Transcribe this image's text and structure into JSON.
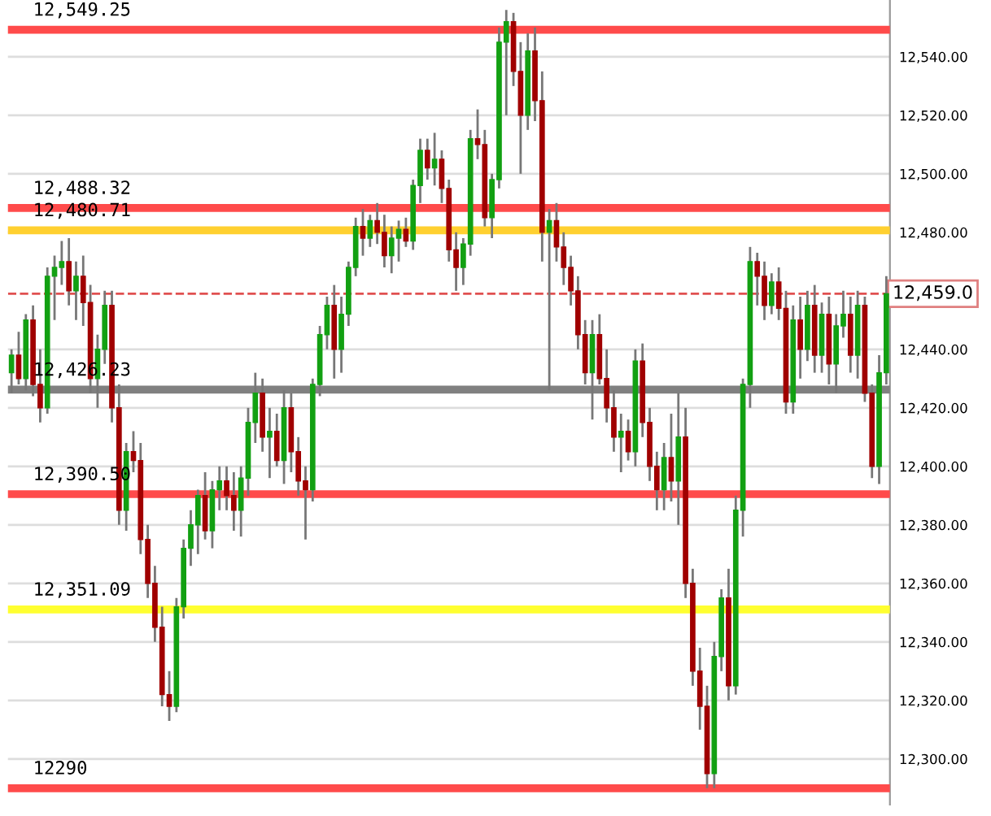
{
  "chart_data": {
    "type": "candlestick",
    "categories": [
      null,
      null,
      null,
      null,
      null,
      null,
      null,
      null,
      null,
      null,
      null,
      null,
      null,
      null,
      null,
      null,
      null,
      null,
      null,
      null,
      null,
      null,
      null,
      null,
      null,
      null,
      null,
      null,
      null,
      null,
      null,
      null,
      null,
      null,
      null,
      null,
      null,
      null,
      null,
      null,
      null,
      null,
      null,
      null,
      null,
      null,
      null,
      null,
      null,
      null,
      null,
      null,
      null,
      null,
      null,
      null,
      null,
      null,
      null,
      null,
      null,
      null,
      null,
      null,
      null,
      null,
      null,
      null,
      null,
      null,
      null,
      null,
      null,
      null,
      null,
      null,
      null,
      null,
      null,
      null,
      null,
      null,
      null,
      null,
      null,
      null,
      null,
      null,
      null,
      null,
      null,
      null,
      null,
      null,
      null,
      null,
      null,
      null,
      null,
      null,
      null,
      null,
      null,
      null,
      null,
      null,
      null,
      null,
      null,
      null,
      null,
      null,
      null,
      null,
      null,
      null,
      null,
      null,
      null,
      null,
      null,
      null,
      null
    ],
    "ohlc": [
      [
        12432,
        12440,
        12425,
        12438
      ],
      [
        12438,
        12446,
        12428,
        12430
      ],
      [
        12430,
        12452,
        12426,
        12450
      ],
      [
        12450,
        12455,
        12424,
        12428
      ],
      [
        12428,
        12440,
        12415,
        12420
      ],
      [
        12420,
        12468,
        12418,
        12465
      ],
      [
        12465,
        12472,
        12450,
        12468
      ],
      [
        12468,
        12477,
        12462,
        12470
      ],
      [
        12470,
        12478,
        12455,
        12460
      ],
      [
        12460,
        12470,
        12450,
        12465
      ],
      [
        12465,
        12472,
        12448,
        12456
      ],
      [
        12456,
        12462,
        12425,
        12430
      ],
      [
        12430,
        12445,
        12420,
        12440
      ],
      [
        12440,
        12460,
        12435,
        12455
      ],
      [
        12455,
        12460,
        12415,
        12420
      ],
      [
        12420,
        12428,
        12380,
        12385
      ],
      [
        12385,
        12408,
        12378,
        12405
      ],
      [
        12405,
        12412,
        12398,
        12402
      ],
      [
        12402,
        12408,
        12370,
        12375
      ],
      [
        12375,
        12380,
        12355,
        12360
      ],
      [
        12360,
        12366,
        12340,
        12345
      ],
      [
        12345,
        12352,
        12318,
        12322
      ],
      [
        12322,
        12330,
        12313,
        12318
      ],
      [
        12318,
        12355,
        12316,
        12352
      ],
      [
        12352,
        12375,
        12348,
        12372
      ],
      [
        12372,
        12385,
        12366,
        12380
      ],
      [
        12380,
        12392,
        12370,
        12390
      ],
      [
        12390,
        12398,
        12375,
        12378
      ],
      [
        12378,
        12395,
        12372,
        12392
      ],
      [
        12392,
        12400,
        12385,
        12395
      ],
      [
        12395,
        12400,
        12385,
        12390
      ],
      [
        12390,
        12398,
        12378,
        12385
      ],
      [
        12385,
        12400,
        12376,
        12396
      ],
      [
        12396,
        12420,
        12390,
        12415
      ],
      [
        12415,
        12432,
        12408,
        12425
      ],
      [
        12425,
        12430,
        12405,
        12410
      ],
      [
        12410,
        12420,
        12396,
        12412
      ],
      [
        12412,
        12418,
        12400,
        12402
      ],
      [
        12402,
        12426,
        12394,
        12420
      ],
      [
        12420,
        12425,
        12398,
        12405
      ],
      [
        12405,
        12410,
        12390,
        12395
      ],
      [
        12395,
        12400,
        12375,
        12392
      ],
      [
        12392,
        12430,
        12388,
        12428
      ],
      [
        12428,
        12448,
        12424,
        12445
      ],
      [
        12445,
        12458,
        12440,
        12455
      ],
      [
        12455,
        12462,
        12430,
        12440
      ],
      [
        12440,
        12458,
        12432,
        12452
      ],
      [
        12452,
        12470,
        12448,
        12468
      ],
      [
        12468,
        12485,
        12465,
        12482
      ],
      [
        12482,
        12488,
        12472,
        12478
      ],
      [
        12478,
        12486,
        12475,
        12484
      ],
      [
        12484,
        12490,
        12476,
        12480
      ],
      [
        12480,
        12486,
        12468,
        12472
      ],
      [
        12472,
        12482,
        12466,
        12478
      ],
      [
        12478,
        12484,
        12470,
        12481
      ],
      [
        12481,
        12485,
        12475,
        12477
      ],
      [
        12477,
        12498,
        12474,
        12496
      ],
      [
        12496,
        12512,
        12490,
        12508
      ],
      [
        12508,
        12512,
        12498,
        12502
      ],
      [
        12502,
        12514,
        12496,
        12505
      ],
      [
        12505,
        12508,
        12490,
        12495
      ],
      [
        12495,
        12498,
        12470,
        12474
      ],
      [
        12474,
        12480,
        12460,
        12468
      ],
      [
        12468,
        12478,
        12462,
        12476
      ],
      [
        12476,
        12515,
        12472,
        12512
      ],
      [
        12512,
        12522,
        12505,
        12510
      ],
      [
        12510,
        12515,
        12482,
        12485
      ],
      [
        12485,
        12500,
        12478,
        12498
      ],
      [
        12498,
        12550,
        12495,
        12545
      ],
      [
        12545,
        12556,
        12520,
        12552
      ],
      [
        12552,
        12555,
        12530,
        12535
      ],
      [
        12535,
        12545,
        12500,
        12520
      ],
      [
        12520,
        12548,
        12515,
        12542
      ],
      [
        12542,
        12550,
        12518,
        12525
      ],
      [
        12525,
        12535,
        12470,
        12480
      ],
      [
        12480,
        12488,
        12426,
        12484
      ],
      [
        12484,
        12490,
        12470,
        12475
      ],
      [
        12475,
        12480,
        12462,
        12468
      ],
      [
        12468,
        12472,
        12455,
        12460
      ],
      [
        12460,
        12465,
        12440,
        12445
      ],
      [
        12445,
        12450,
        12428,
        12432
      ],
      [
        12432,
        12450,
        12416,
        12445
      ],
      [
        12445,
        12452,
        12428,
        12430
      ],
      [
        12430,
        12440,
        12415,
        12420
      ],
      [
        12420,
        12426,
        12405,
        12410
      ],
      [
        12410,
        12418,
        12398,
        12412
      ],
      [
        12412,
        12416,
        12402,
        12405
      ],
      [
        12405,
        12440,
        12400,
        12436
      ],
      [
        12436,
        12442,
        12410,
        12415
      ],
      [
        12415,
        12420,
        12395,
        12400
      ],
      [
        12400,
        12405,
        12385,
        12392
      ],
      [
        12392,
        12408,
        12385,
        12403
      ],
      [
        12403,
        12418,
        12388,
        12395
      ],
      [
        12395,
        12425,
        12380,
        12410
      ],
      [
        12410,
        12420,
        12355,
        12360
      ],
      [
        12360,
        12365,
        12325,
        12330
      ],
      [
        12330,
        12338,
        12310,
        12318
      ],
      [
        12318,
        12325,
        12290,
        12295
      ],
      [
        12295,
        12340,
        12290,
        12335
      ],
      [
        12335,
        12358,
        12330,
        12355
      ],
      [
        12355,
        12365,
        12320,
        12325
      ],
      [
        12325,
        12390,
        12322,
        12385
      ],
      [
        12385,
        12430,
        12376,
        12428
      ],
      [
        12428,
        12475,
        12420,
        12470
      ],
      [
        12470,
        12473,
        12455,
        12465
      ],
      [
        12465,
        12470,
        12450,
        12455
      ],
      [
        12455,
        12466,
        12452,
        12463
      ],
      [
        12463,
        12468,
        12450,
        12454
      ],
      [
        12454,
        12460,
        12418,
        12422
      ],
      [
        12422,
        12455,
        12418,
        12450
      ],
      [
        12450,
        12458,
        12430,
        12440
      ],
      [
        12440,
        12460,
        12436,
        12455
      ],
      [
        12455,
        12462,
        12432,
        12438
      ],
      [
        12438,
        12456,
        12432,
        12452
      ],
      [
        12452,
        12458,
        12428,
        12435
      ],
      [
        12435,
        12452,
        12425,
        12448
      ],
      [
        12448,
        12460,
        12444,
        12452
      ],
      [
        12452,
        12458,
        12432,
        12438
      ],
      [
        12438,
        12460,
        12430,
        12455
      ],
      [
        12455,
        12458,
        12422,
        12425
      ],
      [
        12425,
        12428,
        12396,
        12400
      ],
      [
        12400,
        12438,
        12394,
        12432
      ],
      [
        12432,
        12465,
        12428,
        12459
      ]
    ],
    "ylim": [
      12284.4,
      12559.4
    ],
    "yticks": [
      {
        "value": 12300,
        "label": "12,300.00"
      },
      {
        "value": 12320,
        "label": "12,320.00"
      },
      {
        "value": 12340,
        "label": "12,340.00"
      },
      {
        "value": 12360,
        "label": "12,360.00"
      },
      {
        "value": 12380,
        "label": "12,380.00"
      },
      {
        "value": 12400,
        "label": "12,400.00"
      },
      {
        "value": 12420,
        "label": "12,420.00"
      },
      {
        "value": 12440,
        "label": "12,440.00"
      },
      {
        "value": 12480,
        "label": "12,480.00"
      },
      {
        "value": 12500,
        "label": "12,500.00"
      },
      {
        "value": 12520,
        "label": "12,520.00"
      },
      {
        "value": 12540,
        "label": "12,540.00"
      }
    ],
    "grid": "y",
    "ref_lines": [
      {
        "axis": "y",
        "value": 12549.25,
        "label": "12,549.25",
        "color": "#ff4b4b"
      },
      {
        "axis": "y",
        "value": 12488.32,
        "label": "12,488.32",
        "color": "#ff4b4b"
      },
      {
        "axis": "y",
        "value": 12480.71,
        "label": "12,480.71",
        "color": "#ffd030"
      },
      {
        "axis": "y",
        "value": 12459.0,
        "label": "12,459.0",
        "color": "#e05050",
        "line_style": "dashed"
      },
      {
        "axis": "y",
        "value": 12426.23,
        "label": "12,426.23",
        "color": "#808080"
      },
      {
        "axis": "y",
        "value": 12390.5,
        "label": "12,390.50",
        "color": "#ff4b4b"
      },
      {
        "axis": "y",
        "value": 12351.09,
        "label": "12,351.09",
        "color": "#ffff30"
      },
      {
        "axis": "y",
        "value": 12290,
        "label": "12290",
        "color": "#ff4b4b"
      }
    ]
  }
}
